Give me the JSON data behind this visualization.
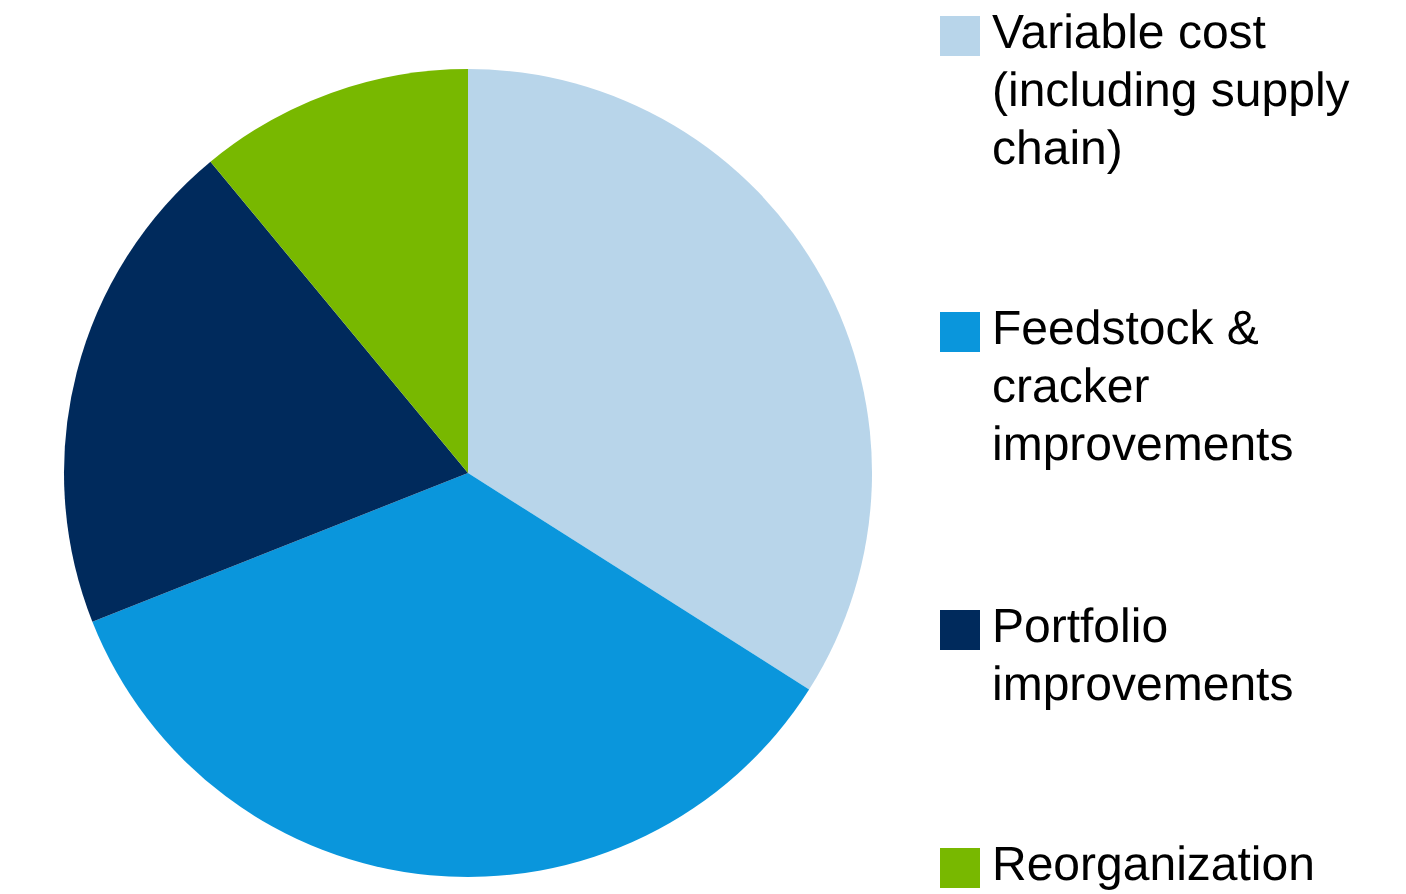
{
  "chart_data": {
    "type": "pie",
    "categories": [
      "Variable cost (including supply chain)",
      "Feedstock & cracker improvements",
      "Portfolio improvements",
      "Reorganization"
    ],
    "values": [
      34,
      35,
      20,
      11
    ],
    "colors": [
      "#b8d5ea",
      "#0a96dc",
      "#002a5c",
      "#78b800"
    ],
    "legend": "right"
  }
}
